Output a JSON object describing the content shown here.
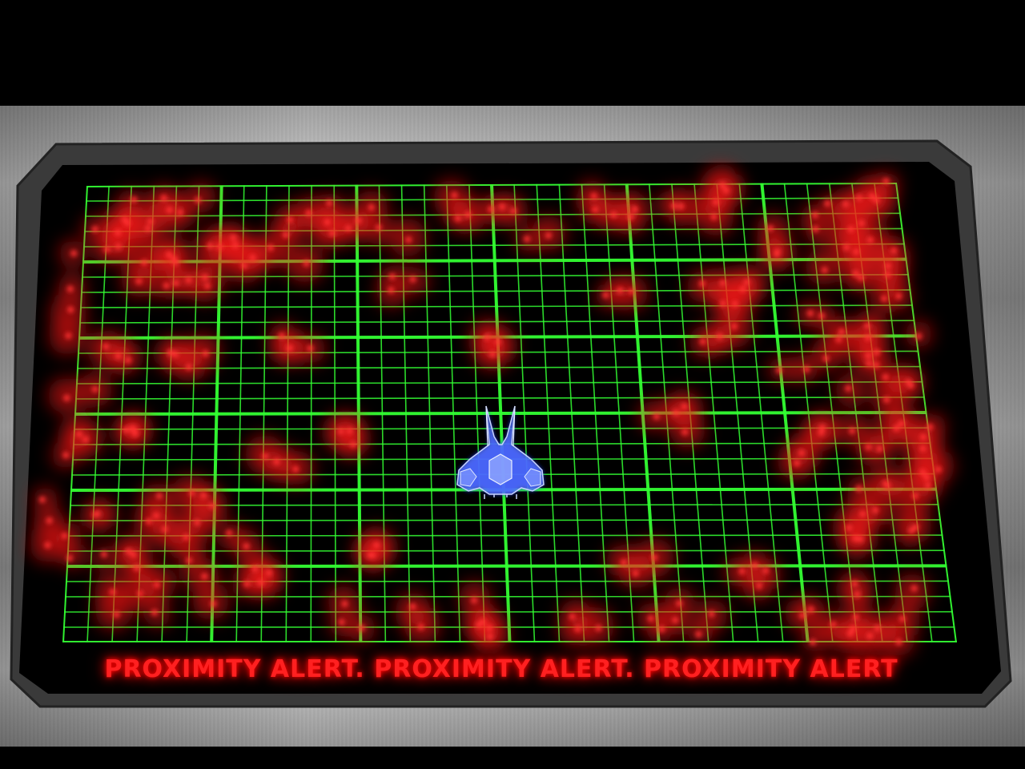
{
  "hud": {
    "alert_message": "PROXIMITY ALERT. PROXIMITY ALERT. PROXIMITY ALERT"
  },
  "colors": {
    "grid": "#33ff33",
    "threat": "#ff1a1a",
    "ship": "#3a5cff",
    "alert_text": "#ff2020",
    "screen_background": "#000000"
  },
  "icons": {
    "player": "player-ship-icon",
    "threat": "threat-blip-icon"
  }
}
